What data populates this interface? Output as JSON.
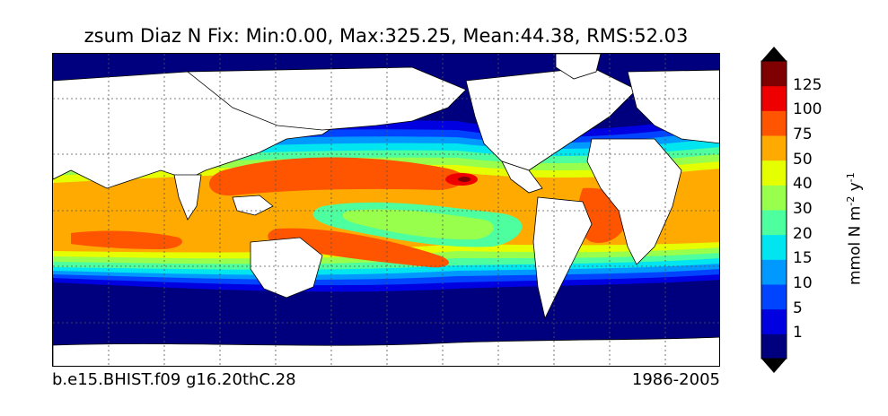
{
  "title": "zsum Diaz N Fix: Min:0.00, Max:325.25, Mean:44.38, RMS:52.03",
  "caption_left": "b.e15.BHIST.f09 g16.20thC.28",
  "caption_right": "1986-2005",
  "colorbar": {
    "units_main": "mmol N m",
    "units_exp1": "-2",
    "units_mid": " y",
    "units_exp2": "-1",
    "levels": [
      "1",
      "5",
      "10",
      "15",
      "20",
      "30",
      "40",
      "50",
      "75",
      "100",
      "125"
    ],
    "colors": [
      "#00007f",
      "#0000e0",
      "#0044ff",
      "#0099ff",
      "#00e5f0",
      "#4dff9e",
      "#99ff4d",
      "#e5ff00",
      "#ffaa00",
      "#ff5500",
      "#ee0000",
      "#7f0000"
    ],
    "extend": "both"
  },
  "map": {
    "projection": "cylindrical",
    "gridlines": "dotted",
    "land_color": "#ffffff",
    "lowest_color": "#00007f"
  }
}
